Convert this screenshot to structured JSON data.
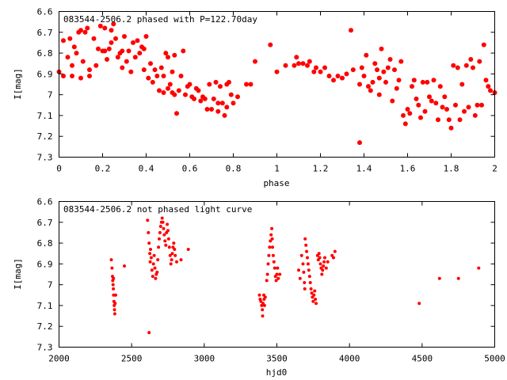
{
  "chart_data": [
    {
      "type": "scatter",
      "title": "083544-2506.2 phased with P=122.70day",
      "xlabel": "phase",
      "ylabel": "I[mag]",
      "xlim": [
        0,
        2
      ],
      "ylim": [
        7.3,
        6.6
      ],
      "y_inverted": true,
      "xticks": [
        "0",
        "0.2",
        "0.4",
        "0.6",
        "0.8",
        "1",
        "1.2",
        "1.4",
        "1.6",
        "1.8",
        "2"
      ],
      "yticks": [
        "6.6",
        "6.7",
        "6.8",
        "6.9",
        "7",
        "7.1",
        "7.2",
        "7.3"
      ],
      "grid": false,
      "marker_color": "#ff0000",
      "marker": "filled-circle",
      "points": [
        [
          0.0,
          6.89
        ],
        [
          0.02,
          6.74
        ],
        [
          0.02,
          6.91
        ],
        [
          0.04,
          6.82
        ],
        [
          0.05,
          6.73
        ],
        [
          0.06,
          6.86
        ],
        [
          0.07,
          6.77
        ],
        [
          0.06,
          6.91
        ],
        [
          0.08,
          6.8
        ],
        [
          0.09,
          6.7
        ],
        [
          0.1,
          6.69
        ],
        [
          0.1,
          6.92
        ],
        [
          0.11,
          6.84
        ],
        [
          0.12,
          6.7
        ],
        [
          0.13,
          6.68
        ],
        [
          0.14,
          6.88
        ],
        [
          0.14,
          6.91
        ],
        [
          0.16,
          6.73
        ],
        [
          0.17,
          6.86
        ],
        [
          0.18,
          6.78
        ],
        [
          0.19,
          6.67
        ],
        [
          0.2,
          6.79
        ],
        [
          0.21,
          6.79
        ],
        [
          0.21,
          6.68
        ],
        [
          0.22,
          6.83
        ],
        [
          0.23,
          6.78
        ],
        [
          0.24,
          6.75
        ],
        [
          0.24,
          6.69
        ],
        [
          0.25,
          6.66
        ],
        [
          0.26,
          6.73
        ],
        [
          0.27,
          6.82
        ],
        [
          0.28,
          6.8
        ],
        [
          0.29,
          6.87
        ],
        [
          0.29,
          6.79
        ],
        [
          0.3,
          6.72
        ],
        [
          0.31,
          6.84
        ],
        [
          0.32,
          6.79
        ],
        [
          0.33,
          6.89
        ],
        [
          0.34,
          6.75
        ],
        [
          0.35,
          6.82
        ],
        [
          0.36,
          6.74
        ],
        [
          0.37,
          6.8
        ],
        [
          0.38,
          6.77
        ],
        [
          0.39,
          6.78
        ],
        [
          0.39,
          6.88
        ],
        [
          0.4,
          6.72
        ],
        [
          0.41,
          6.92
        ],
        [
          0.42,
          6.85
        ],
        [
          0.43,
          6.94
        ],
        [
          0.44,
          6.88
        ],
        [
          0.45,
          6.91
        ],
        [
          0.46,
          6.98
        ],
        [
          0.47,
          6.87
        ],
        [
          0.48,
          6.91
        ],
        [
          0.48,
          6.99
        ],
        [
          0.49,
          6.8
        ],
        [
          0.5,
          6.97
        ],
        [
          0.5,
          6.82
        ],
        [
          0.51,
          6.95
        ],
        [
          0.52,
          6.99
        ],
        [
          0.52,
          6.89
        ],
        [
          0.53,
          6.81
        ],
        [
          0.53,
          7.0
        ],
        [
          0.54,
          7.09
        ],
        [
          0.55,
          6.98
        ],
        [
          0.56,
          6.91
        ],
        [
          0.57,
          6.79
        ],
        [
          0.58,
          7.0
        ],
        [
          0.59,
          6.96
        ],
        [
          0.6,
          6.95
        ],
        [
          0.61,
          7.01
        ],
        [
          0.62,
          7.02
        ],
        [
          0.63,
          6.97
        ],
        [
          0.64,
          6.98
        ],
        [
          0.65,
          7.03
        ],
        [
          0.66,
          7.01
        ],
        [
          0.67,
          7.02
        ],
        [
          0.68,
          7.07
        ],
        [
          0.69,
          6.95
        ],
        [
          0.7,
          7.07
        ],
        [
          0.71,
          7.02
        ],
        [
          0.72,
          6.94
        ],
        [
          0.73,
          7.04
        ],
        [
          0.73,
          7.08
        ],
        [
          0.74,
          6.96
        ],
        [
          0.75,
          7.04
        ],
        [
          0.76,
          7.1
        ],
        [
          0.77,
          7.06
        ],
        [
          0.77,
          6.95
        ],
        [
          0.78,
          6.94
        ],
        [
          0.79,
          7.0
        ],
        [
          0.8,
          7.04
        ],
        [
          0.82,
          7.01
        ],
        [
          0.86,
          6.95
        ],
        [
          0.88,
          6.95
        ],
        [
          0.9,
          6.84
        ],
        [
          0.97,
          6.76
        ],
        [
          1.0,
          6.89
        ],
        [
          1.04,
          6.86
        ],
        [
          1.08,
          6.86
        ],
        [
          1.09,
          6.82
        ],
        [
          1.1,
          6.85
        ],
        [
          1.12,
          6.85
        ],
        [
          1.14,
          6.86
        ],
        [
          1.15,
          6.84
        ],
        [
          1.17,
          6.89
        ],
        [
          1.18,
          6.87
        ],
        [
          1.2,
          6.89
        ],
        [
          1.22,
          6.87
        ],
        [
          1.24,
          6.91
        ],
        [
          1.26,
          6.93
        ],
        [
          1.28,
          6.91
        ],
        [
          1.3,
          6.92
        ],
        [
          1.32,
          6.9
        ],
        [
          1.34,
          6.69
        ],
        [
          1.35,
          6.88
        ],
        [
          1.38,
          7.23
        ],
        [
          1.38,
          6.95
        ],
        [
          1.39,
          6.87
        ],
        [
          1.4,
          6.91
        ],
        [
          1.41,
          6.81
        ],
        [
          1.42,
          6.96
        ],
        [
          1.43,
          6.98
        ],
        [
          1.44,
          6.94
        ],
        [
          1.45,
          6.85
        ],
        [
          1.46,
          6.88
        ],
        [
          1.47,
          6.92
        ],
        [
          1.47,
          7.0
        ],
        [
          1.48,
          6.78
        ],
        [
          1.49,
          6.89
        ],
        [
          1.5,
          6.94
        ],
        [
          1.51,
          6.87
        ],
        [
          1.52,
          6.83
        ],
        [
          1.53,
          7.03
        ],
        [
          1.54,
          6.88
        ],
        [
          1.55,
          6.97
        ],
        [
          1.56,
          6.93
        ],
        [
          1.57,
          6.84
        ],
        [
          1.58,
          7.1
        ],
        [
          1.59,
          7.14
        ],
        [
          1.6,
          7.07
        ],
        [
          1.61,
          7.09
        ],
        [
          1.62,
          6.96
        ],
        [
          1.63,
          6.93
        ],
        [
          1.64,
          7.02
        ],
        [
          1.65,
          7.05
        ],
        [
          1.66,
          7.11
        ],
        [
          1.67,
          6.94
        ],
        [
          1.68,
          7.08
        ],
        [
          1.69,
          6.94
        ],
        [
          1.7,
          7.01
        ],
        [
          1.71,
          7.03
        ],
        [
          1.72,
          6.93
        ],
        [
          1.73,
          7.04
        ],
        [
          1.74,
          7.12
        ],
        [
          1.75,
          6.96
        ],
        [
          1.76,
          7.06
        ],
        [
          1.77,
          7.01
        ],
        [
          1.78,
          7.07
        ],
        [
          1.79,
          7.12
        ],
        [
          1.8,
          7.16
        ],
        [
          1.81,
          6.86
        ],
        [
          1.82,
          7.05
        ],
        [
          1.83,
          6.87
        ],
        [
          1.84,
          7.12
        ],
        [
          1.85,
          6.95
        ],
        [
          1.86,
          7.08
        ],
        [
          1.87,
          6.86
        ],
        [
          1.88,
          7.06
        ],
        [
          1.89,
          6.83
        ],
        [
          1.9,
          6.87
        ],
        [
          1.91,
          7.1
        ],
        [
          1.92,
          7.05
        ],
        [
          1.93,
          6.84
        ],
        [
          1.94,
          7.05
        ],
        [
          1.95,
          6.76
        ],
        [
          1.96,
          6.93
        ],
        [
          1.97,
          6.96
        ],
        [
          1.98,
          6.98
        ],
        [
          2.0,
          6.99
        ]
      ]
    },
    {
      "type": "scatter",
      "title": "083544-2506.2 not phased light curve",
      "xlabel": "hjd0",
      "ylabel": "I[mag]",
      "xlim": [
        2000,
        5000
      ],
      "ylim": [
        7.3,
        6.6
      ],
      "y_inverted": true,
      "xticks": [
        "2000",
        "2500",
        "3000",
        "3500",
        "4000",
        "4500",
        "5000"
      ],
      "yticks": [
        "6.6",
        "6.7",
        "6.8",
        "6.9",
        "7",
        "7.1",
        "7.2",
        "7.3"
      ],
      "grid": false,
      "marker_color": "#ff0000",
      "marker": "filled-circle",
      "points": [
        [
          2360,
          6.88
        ],
        [
          2365,
          6.92
        ],
        [
          2368,
          6.96
        ],
        [
          2370,
          6.98
        ],
        [
          2372,
          7.0
        ],
        [
          2374,
          7.02
        ],
        [
          2376,
          7.05
        ],
        [
          2378,
          7.08
        ],
        [
          2380,
          7.1
        ],
        [
          2382,
          7.12
        ],
        [
          2384,
          7.14
        ],
        [
          2386,
          7.09
        ],
        [
          2375,
          6.97
        ],
        [
          2390,
          7.05
        ],
        [
          2450,
          6.91
        ],
        [
          2610,
          6.69
        ],
        [
          2615,
          6.75
        ],
        [
          2620,
          6.8
        ],
        [
          2625,
          6.85
        ],
        [
          2628,
          6.89
        ],
        [
          2630,
          6.83
        ],
        [
          2635,
          6.87
        ],
        [
          2640,
          6.93
        ],
        [
          2645,
          6.96
        ],
        [
          2650,
          6.9
        ],
        [
          2655,
          6.86
        ],
        [
          2660,
          6.92
        ],
        [
          2665,
          6.97
        ],
        [
          2670,
          6.95
        ],
        [
          2675,
          6.94
        ],
        [
          2680,
          6.88
        ],
        [
          2685,
          6.82
        ],
        [
          2690,
          6.78
        ],
        [
          2695,
          6.75
        ],
        [
          2700,
          6.72
        ],
        [
          2705,
          6.7
        ],
        [
          2710,
          6.68
        ],
        [
          2715,
          6.7
        ],
        [
          2720,
          6.73
        ],
        [
          2725,
          6.76
        ],
        [
          2730,
          6.79
        ],
        [
          2735,
          6.81
        ],
        [
          2740,
          6.75
        ],
        [
          2745,
          6.71
        ],
        [
          2750,
          6.74
        ],
        [
          2755,
          6.78
        ],
        [
          2760,
          6.82
        ],
        [
          2765,
          6.86
        ],
        [
          2770,
          6.9
        ],
        [
          2775,
          6.88
        ],
        [
          2780,
          6.85
        ],
        [
          2785,
          6.82
        ],
        [
          2790,
          6.8
        ],
        [
          2795,
          6.83
        ],
        [
          2800,
          6.86
        ],
        [
          2810,
          6.89
        ],
        [
          2840,
          6.88
        ],
        [
          2890,
          6.83
        ],
        [
          2620,
          7.23
        ],
        [
          3380,
          7.05
        ],
        [
          3385,
          7.07
        ],
        [
          3390,
          7.08
        ],
        [
          3395,
          7.1
        ],
        [
          3400,
          7.12
        ],
        [
          3402,
          7.15
        ],
        [
          3405,
          7.09
        ],
        [
          3410,
          7.05
        ],
        [
          3412,
          7.07
        ],
        [
          3415,
          7.1
        ],
        [
          3420,
          7.06
        ],
        [
          3430,
          6.98
        ],
        [
          3435,
          6.95
        ],
        [
          3440,
          6.9
        ],
        [
          3445,
          6.86
        ],
        [
          3450,
          6.82
        ],
        [
          3455,
          6.79
        ],
        [
          3460,
          6.76
        ],
        [
          3465,
          6.73
        ],
        [
          3468,
          6.78
        ],
        [
          3470,
          6.82
        ],
        [
          3475,
          6.86
        ],
        [
          3480,
          6.89
        ],
        [
          3485,
          6.92
        ],
        [
          3490,
          6.96
        ],
        [
          3495,
          6.98
        ],
        [
          3500,
          6.95
        ],
        [
          3505,
          6.92
        ],
        [
          3510,
          6.97
        ],
        [
          3520,
          6.95
        ],
        [
          3650,
          6.93
        ],
        [
          3660,
          6.97
        ],
        [
          3670,
          6.86
        ],
        [
          3680,
          6.9
        ],
        [
          3685,
          6.94
        ],
        [
          3690,
          6.99
        ],
        [
          3692,
          7.02
        ],
        [
          3695,
          6.78
        ],
        [
          3700,
          6.81
        ],
        [
          3705,
          6.84
        ],
        [
          3710,
          6.87
        ],
        [
          3715,
          6.9
        ],
        [
          3720,
          6.93
        ],
        [
          3725,
          6.96
        ],
        [
          3730,
          6.99
        ],
        [
          3735,
          7.02
        ],
        [
          3740,
          7.04
        ],
        [
          3745,
          7.06
        ],
        [
          3750,
          7.08
        ],
        [
          3755,
          7.05
        ],
        [
          3760,
          7.03
        ],
        [
          3765,
          7.07
        ],
        [
          3770,
          7.09
        ],
        [
          3780,
          6.86
        ],
        [
          3785,
          6.88
        ],
        [
          3790,
          6.85
        ],
        [
          3795,
          6.87
        ],
        [
          3800,
          6.9
        ],
        [
          3805,
          6.92
        ],
        [
          3810,
          6.95
        ],
        [
          3815,
          6.93
        ],
        [
          3820,
          6.91
        ],
        [
          3825,
          6.89
        ],
        [
          3830,
          6.87
        ],
        [
          3840,
          6.92
        ],
        [
          3850,
          6.89
        ],
        [
          3880,
          6.86
        ],
        [
          3890,
          6.87
        ],
        [
          3900,
          6.84
        ],
        [
          4480,
          7.09
        ],
        [
          4620,
          6.97
        ],
        [
          4750,
          6.97
        ],
        [
          4890,
          6.92
        ]
      ]
    }
  ]
}
